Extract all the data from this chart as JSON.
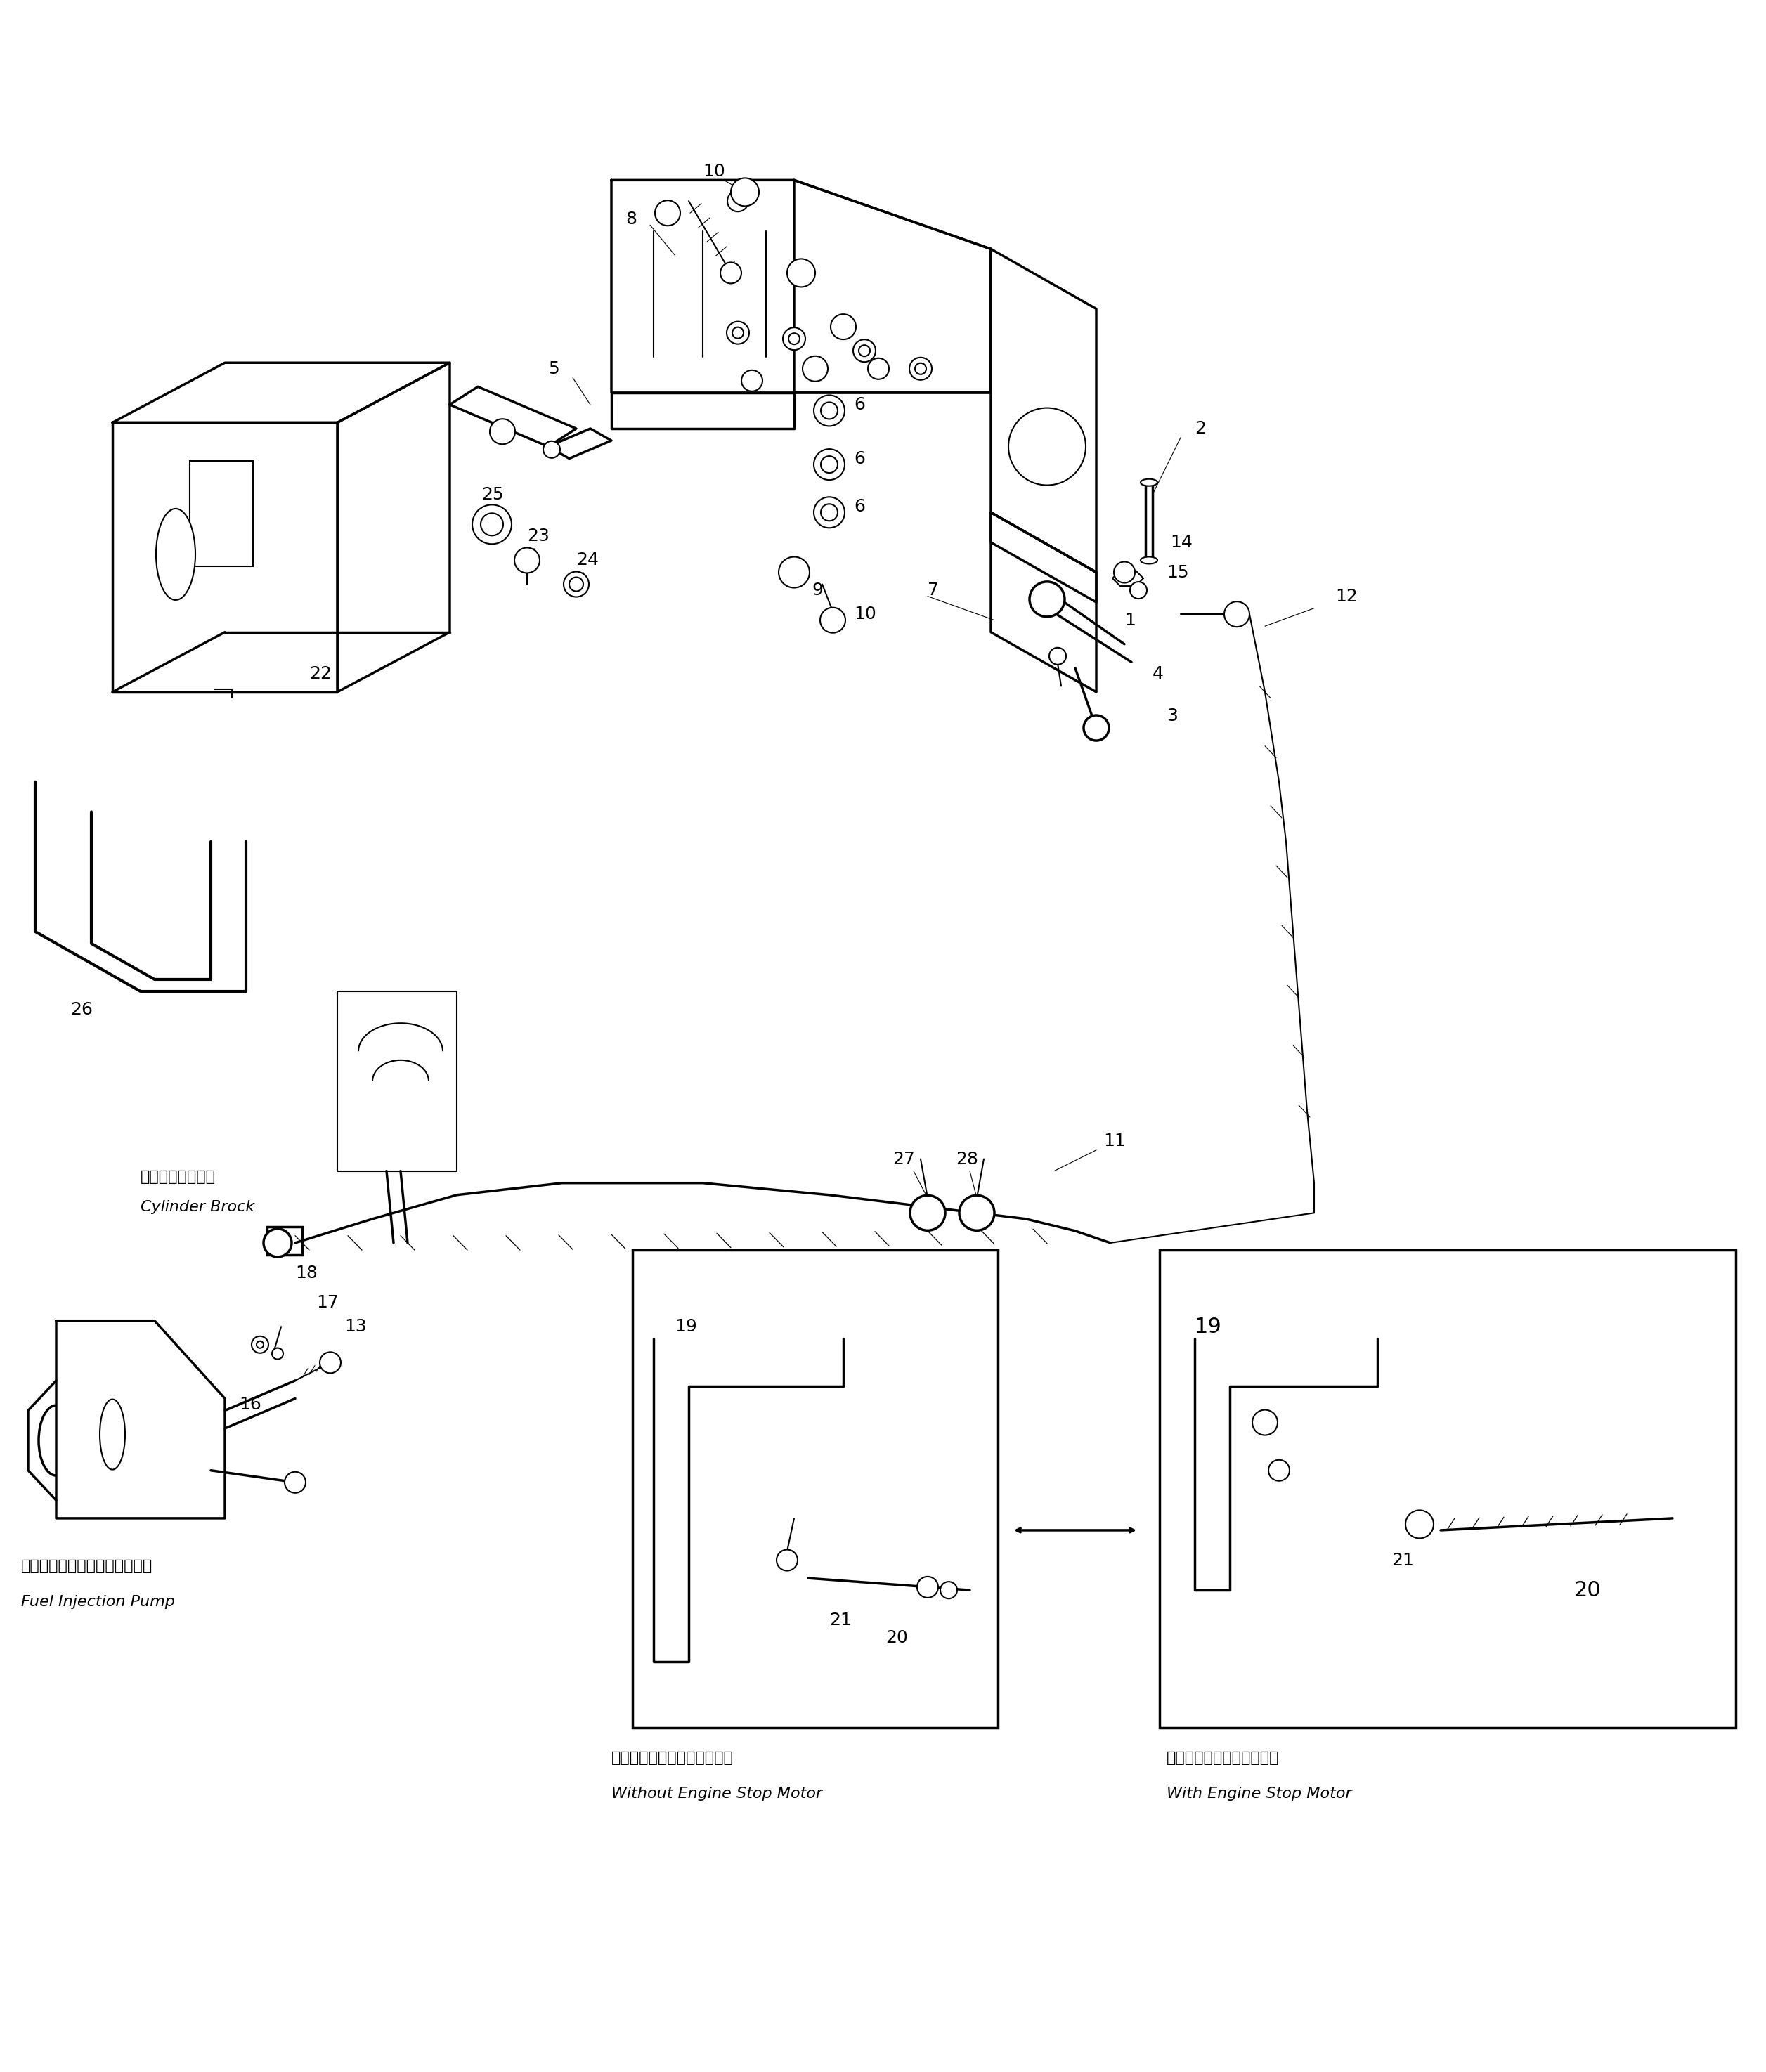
{
  "bg_color": "#ffffff",
  "line_color": "#000000",
  "fig_width": 25.13,
  "fig_height": 29.49,
  "labels": {
    "cylinder_brock_jp": "シリンダブロック",
    "cylinder_brock_en": "Cylinder Brock",
    "fuel_pump_jp": "フエルインジェクションポンプ",
    "fuel_pump_en": "Fuel Injection Pump",
    "without_motor_jp": "エンジンストップモータなし",
    "without_motor_en": "Without Engine Stop Motor",
    "with_motor_jp": "エンジンストップモータ付",
    "with_motor_en": "With Engine Stop Motor"
  }
}
